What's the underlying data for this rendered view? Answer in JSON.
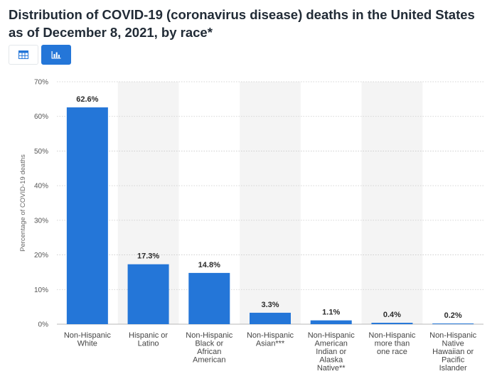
{
  "title": "Distribution of COVID-19 (coronavirus disease) deaths in the United States as of December 8, 2021, by race*",
  "view_toggle": {
    "table_icon": "table-icon",
    "chart_icon": "bar-chart-icon",
    "active": "chart"
  },
  "colors": {
    "bar": "#2476d8",
    "band": "#f4f4f4",
    "grid": "#c9c9c9",
    "toggle_active": "#2476d8"
  },
  "chart_data": {
    "type": "bar",
    "categories": [
      [
        "Non-Hispanic",
        "White"
      ],
      [
        "Hispanic or",
        "Latino"
      ],
      [
        "Non-Hispanic",
        "Black or",
        "African",
        "American"
      ],
      [
        "Non-Hispanic",
        "Asian***"
      ],
      [
        "Non-Hispanic",
        "American",
        "Indian or",
        "Alaska",
        "Native**"
      ],
      [
        "Non-Hispanic",
        "more than",
        "one race"
      ],
      [
        "Non-Hispanic",
        "Native",
        "Hawaiian or",
        "Pacific",
        "Islander"
      ]
    ],
    "values": [
      62.6,
      17.3,
      14.8,
      3.3,
      1.1,
      0.4,
      0.2
    ],
    "value_labels": [
      "62.6%",
      "17.3%",
      "14.8%",
      "3.3%",
      "1.1%",
      "0.4%",
      "0.2%"
    ],
    "ylabel": "Percentage of COVID-19 deaths",
    "ylim": [
      0,
      70
    ],
    "yticks": [
      0,
      10,
      20,
      30,
      40,
      50,
      60,
      70
    ],
    "ytick_labels": [
      "0%",
      "10%",
      "20%",
      "30%",
      "40%",
      "50%",
      "60%",
      "70%"
    ],
    "grid": true,
    "alternating_bands": true,
    "legend": "none"
  }
}
